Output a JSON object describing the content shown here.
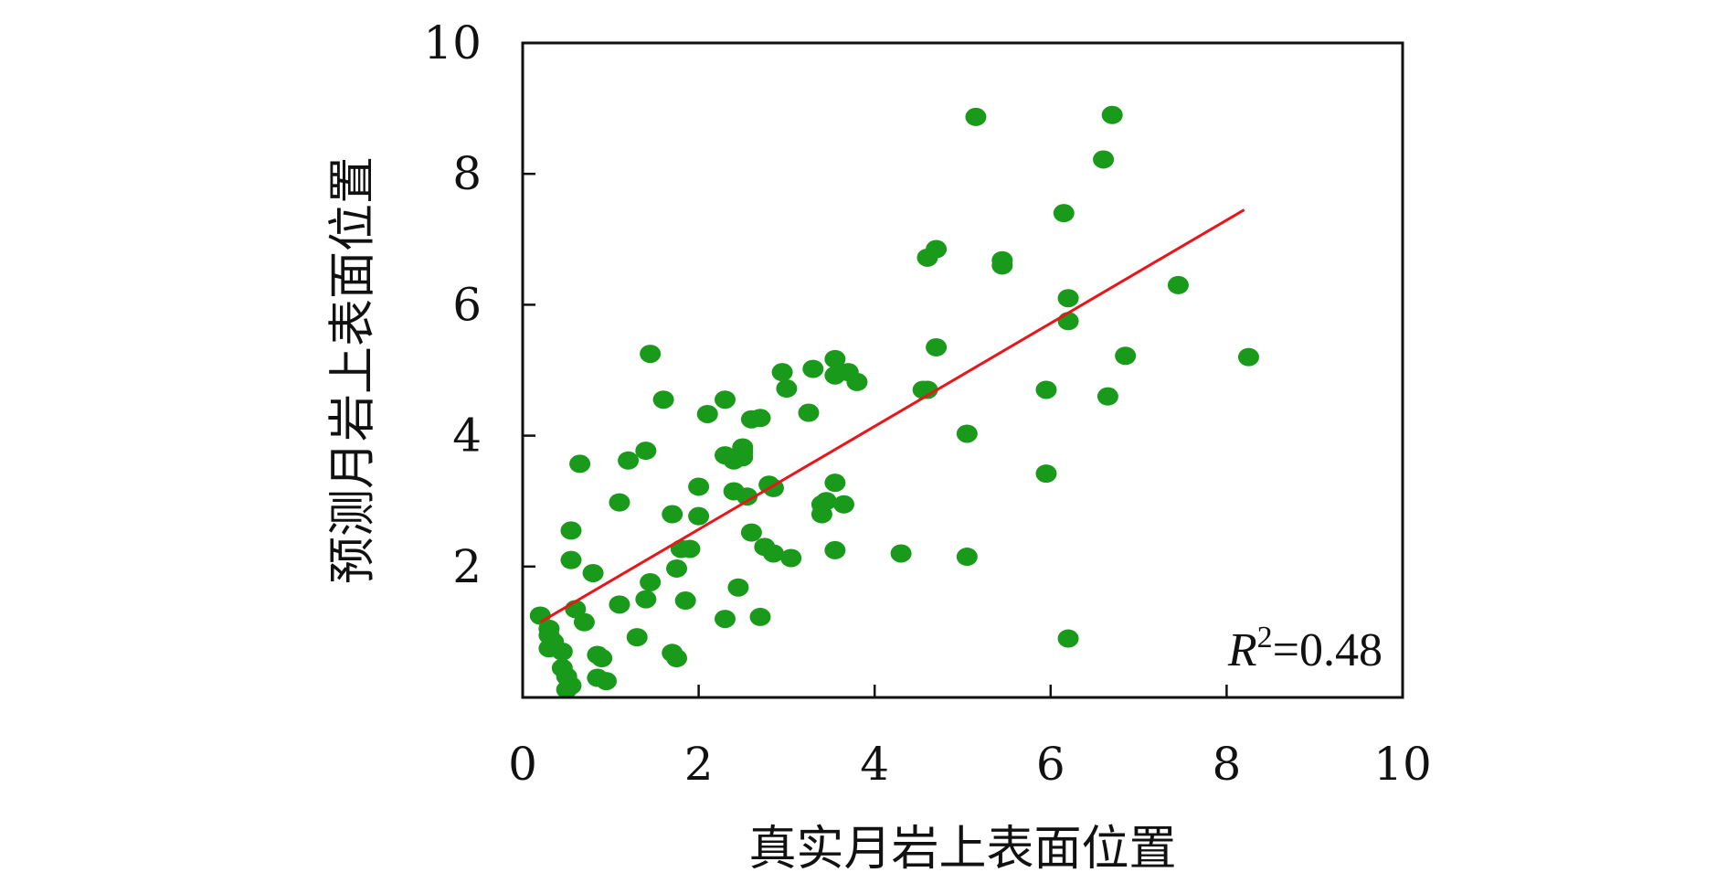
{
  "chart_data": {
    "type": "scatter",
    "xlabel": "真实月岩上表面位置",
    "ylabel": "预测月岩上表面位置",
    "xlim": [
      0,
      10
    ],
    "ylim": [
      0,
      10
    ],
    "x_ticks": [
      "0",
      "2",
      "4",
      "6",
      "8",
      "10"
    ],
    "y_ticks": [
      "2",
      "4",
      "6",
      "8",
      "10"
    ],
    "grid": false,
    "point_color": "#1a9a1a",
    "line_color": "#e8161a",
    "annotation": {
      "variable": "R",
      "superscript": "2",
      "equals_text": "=0.48"
    },
    "fit_line": {
      "x": [
        0.2,
        8.2
      ],
      "y": [
        1.15,
        7.45
      ]
    },
    "series": [
      {
        "points": [
          [
            0.2,
            1.25
          ],
          [
            0.3,
            1.05
          ],
          [
            0.3,
            0.95
          ],
          [
            0.35,
            0.85
          ],
          [
            0.3,
            0.75
          ],
          [
            0.45,
            0.7
          ],
          [
            0.45,
            0.45
          ],
          [
            0.5,
            0.32
          ],
          [
            0.55,
            0.18
          ],
          [
            0.5,
            0.12
          ],
          [
            0.6,
            1.35
          ],
          [
            0.7,
            1.15
          ],
          [
            0.55,
            2.55
          ],
          [
            0.55,
            2.1
          ],
          [
            0.65,
            3.57
          ],
          [
            0.8,
            1.9
          ],
          [
            0.85,
            0.65
          ],
          [
            0.9,
            0.6
          ],
          [
            0.85,
            0.3
          ],
          [
            0.95,
            0.25
          ],
          [
            1.1,
            2.98
          ],
          [
            1.1,
            1.42
          ],
          [
            1.2,
            3.62
          ],
          [
            1.3,
            0.92
          ],
          [
            1.4,
            1.5
          ],
          [
            1.4,
            3.77
          ],
          [
            1.45,
            1.76
          ],
          [
            1.45,
            5.25
          ],
          [
            1.6,
            4.55
          ],
          [
            1.7,
            0.68
          ],
          [
            1.7,
            2.8
          ],
          [
            1.75,
            0.6
          ],
          [
            1.75,
            1.97
          ],
          [
            1.8,
            2.27
          ],
          [
            1.85,
            1.48
          ],
          [
            1.9,
            2.27
          ],
          [
            2.0,
            2.77
          ],
          [
            2.0,
            3.22
          ],
          [
            2.1,
            4.33
          ],
          [
            2.3,
            4.55
          ],
          [
            2.3,
            3.7
          ],
          [
            2.3,
            1.2
          ],
          [
            2.4,
            3.62
          ],
          [
            2.4,
            3.15
          ],
          [
            2.45,
            1.68
          ],
          [
            2.5,
            3.75
          ],
          [
            2.5,
            3.67
          ],
          [
            2.5,
            3.82
          ],
          [
            2.55,
            3.07
          ],
          [
            2.6,
            4.25
          ],
          [
            2.6,
            2.52
          ],
          [
            2.7,
            4.27
          ],
          [
            2.7,
            1.23
          ],
          [
            2.75,
            2.3
          ],
          [
            2.8,
            3.25
          ],
          [
            2.85,
            3.2
          ],
          [
            2.85,
            2.2
          ],
          [
            2.95,
            4.97
          ],
          [
            3.0,
            4.72
          ],
          [
            3.05,
            2.13
          ],
          [
            3.25,
            4.35
          ],
          [
            3.3,
            5.02
          ],
          [
            3.4,
            2.8
          ],
          [
            3.4,
            2.95
          ],
          [
            3.45,
            3.0
          ],
          [
            3.55,
            5.17
          ],
          [
            3.55,
            4.92
          ],
          [
            3.55,
            3.28
          ],
          [
            3.55,
            2.25
          ],
          [
            3.65,
            2.95
          ],
          [
            3.7,
            4.97
          ],
          [
            3.8,
            4.82
          ],
          [
            4.3,
            2.2
          ],
          [
            4.55,
            4.7
          ],
          [
            4.6,
            4.7
          ],
          [
            4.6,
            6.72
          ],
          [
            4.7,
            6.85
          ],
          [
            4.7,
            5.35
          ],
          [
            5.05,
            4.03
          ],
          [
            5.05,
            2.15
          ],
          [
            5.15,
            8.87
          ],
          [
            5.45,
            6.68
          ],
          [
            5.45,
            6.6
          ],
          [
            5.95,
            4.7
          ],
          [
            5.95,
            3.42
          ],
          [
            6.15,
            7.4
          ],
          [
            6.2,
            6.1
          ],
          [
            6.2,
            5.75
          ],
          [
            6.2,
            0.9
          ],
          [
            6.6,
            8.22
          ],
          [
            6.65,
            4.6
          ],
          [
            6.7,
            8.9
          ],
          [
            6.85,
            5.22
          ],
          [
            7.45,
            6.3
          ],
          [
            8.25,
            5.2
          ]
        ]
      }
    ]
  }
}
